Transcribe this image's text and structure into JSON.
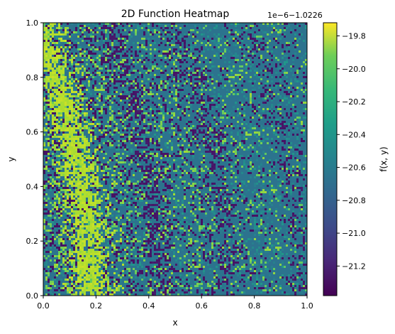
{
  "chart_data": {
    "type": "heatmap",
    "title": "2D Function Heatmap",
    "xlabel": "x",
    "ylabel": "y",
    "xlim": [
      0.0,
      1.0
    ],
    "ylim": [
      0.0,
      1.0
    ],
    "xticks": [
      "0.0",
      "0.2",
      "0.4",
      "0.6",
      "0.8",
      "1.0"
    ],
    "yticks": [
      "0.0",
      "0.2",
      "0.4",
      "0.6",
      "0.8",
      "1.0"
    ],
    "colorbar": {
      "label": "f(x, y)",
      "offset_text": "1e−6−1.0226",
      "ticks": [
        "−21.2",
        "−21.0",
        "−20.8",
        "−20.6",
        "−20.4",
        "−20.2",
        "−20.0",
        "−19.8"
      ],
      "tick_values": [
        -21.2,
        -21.0,
        -20.8,
        -20.6,
        -20.4,
        -20.2,
        -20.0,
        -19.8
      ],
      "range": [
        -21.38,
        -19.72
      ],
      "colormap": "viridis"
    },
    "grid": false,
    "description_values": {
      "background_level": -20.75,
      "high_band_level": -19.95,
      "low_streak_level": -21.3
    }
  },
  "colors": {
    "viridis_low": "#440154",
    "viridis_mid": "#21918c",
    "viridis_high": "#fde725"
  }
}
